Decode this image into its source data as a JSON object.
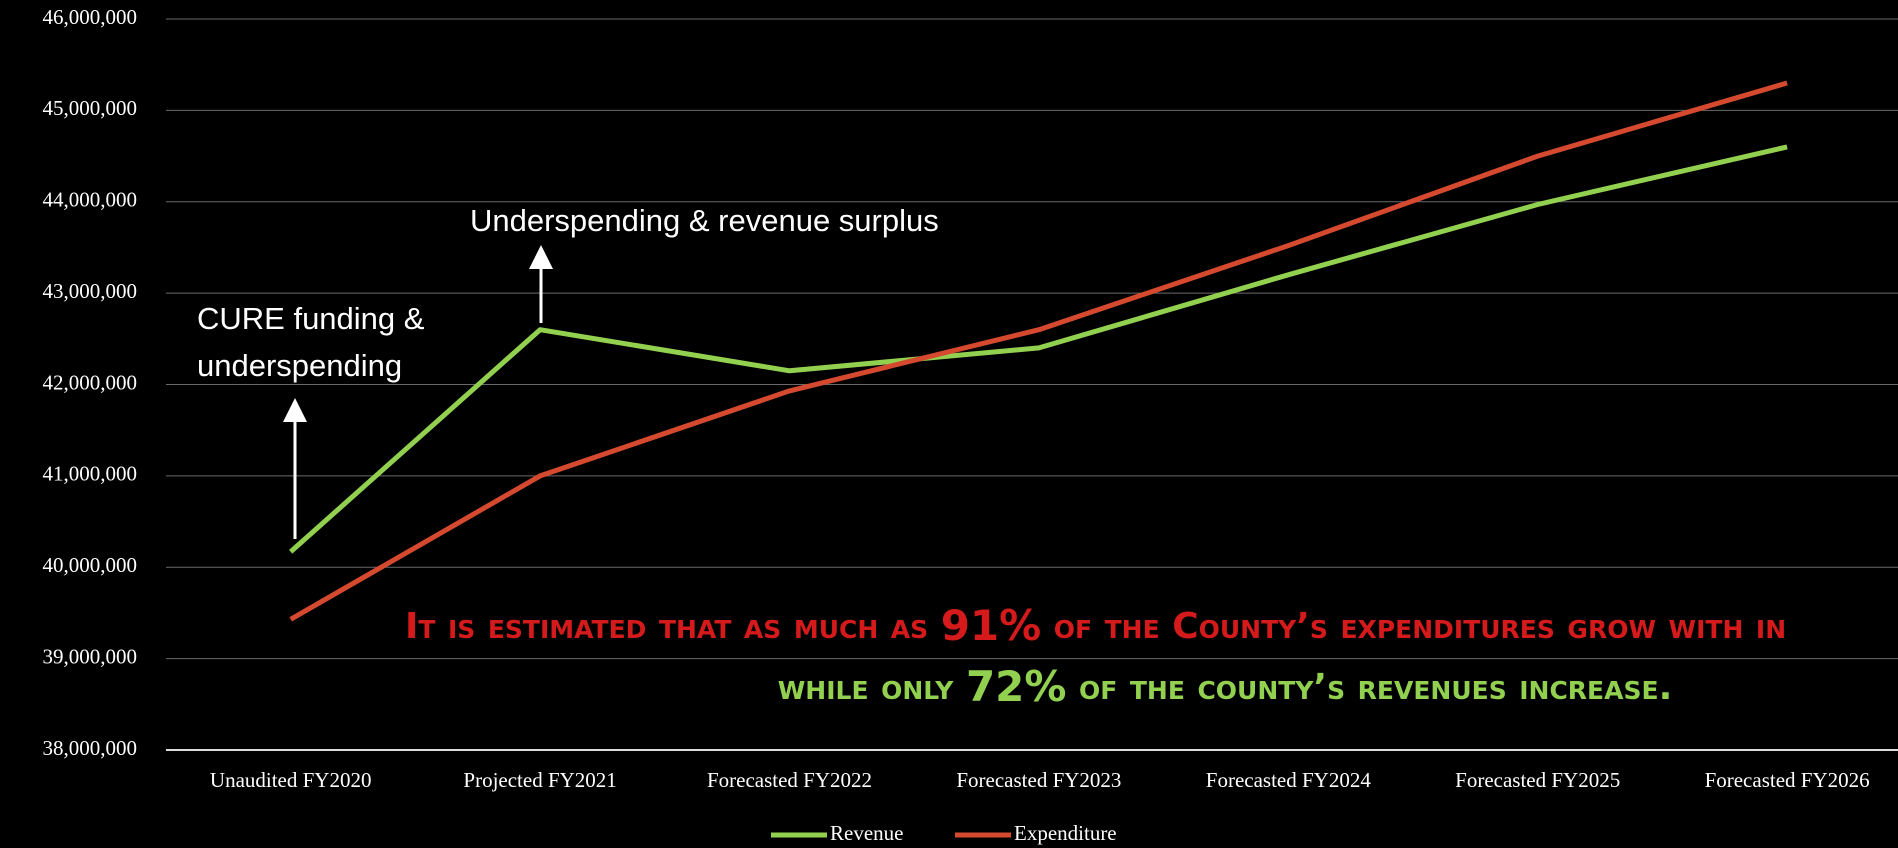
{
  "chart_data": {
    "type": "line",
    "categories": [
      "Unaudited FY2020",
      "Projected FY2021",
      "Forecasted FY2022",
      "Forecasted FY2023",
      "Forecasted FY2024",
      "Forecasted FY2025",
      "Forecasted FY2026"
    ],
    "series": [
      {
        "name": "Revenue",
        "color": "#92d050",
        "values": [
          40170000,
          42600000,
          42150000,
          42400000,
          43200000,
          43970000,
          44600000
        ]
      },
      {
        "name": "Expenditure",
        "color": "#d5492f",
        "values": [
          39430000,
          41000000,
          41930000,
          42600000,
          43520000,
          44500000,
          45300000
        ]
      }
    ],
    "ylim": [
      38000000,
      46000000
    ],
    "yticks": [
      {
        "value": 38000000,
        "label": "38,000,000"
      },
      {
        "value": 39000000,
        "label": "39,000,000"
      },
      {
        "value": 40000000,
        "label": "40,000,000"
      },
      {
        "value": 41000000,
        "label": "41,000,000"
      },
      {
        "value": 42000000,
        "label": "42,000,000"
      },
      {
        "value": 43000000,
        "label": "43,000,000"
      },
      {
        "value": 44000000,
        "label": "44,000,000"
      },
      {
        "value": 45000000,
        "label": "45,000,000"
      },
      {
        "value": 46000000,
        "label": "46,000,000"
      }
    ],
    "grid": true,
    "legend": "bottom",
    "annotations": [
      {
        "lines": [
          "CURE funding &",
          "underspending"
        ]
      },
      {
        "lines": [
          "Underspending & revenue surplus"
        ]
      }
    ],
    "note": {
      "line1": [
        "It is estimated that as much as ",
        "91%",
        " of the County’s expenditures grow with in"
      ],
      "line2": [
        "while only ",
        "72%",
        " of the county’s revenues increase."
      ]
    }
  }
}
